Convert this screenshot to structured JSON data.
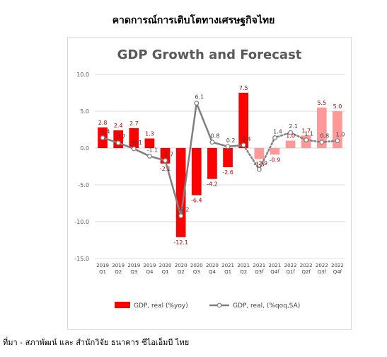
{
  "page_title": "คาดการณ์การเติบโตทางเศรษฐกิจไทย",
  "source": "ที่มา - สภาพัฒน์ และ สำนักวิจัย ธนาคาร ซีไอเอ็มบี ไทย",
  "colors": {
    "actual_bar": "#ff0000",
    "forecast_bar": "#ff9999",
    "line": "#7f7f7f",
    "grid": "#d9d9d9",
    "title": "#595959",
    "yoy_label": "#c00000",
    "qoq_label": "#404040"
  },
  "chart_data": {
    "type": "bar",
    "title": "GDP Growth and Forecast",
    "categories": [
      [
        "2019",
        "Q1"
      ],
      [
        "2019",
        "Q2"
      ],
      [
        "2019",
        "Q3"
      ],
      [
        "2019",
        "Q4"
      ],
      [
        "2020",
        "Q1"
      ],
      [
        "2020",
        "Q2"
      ],
      [
        "2020",
        "Q3"
      ],
      [
        "2020",
        "Q4"
      ],
      [
        "2021",
        "Q1"
      ],
      [
        "2021",
        "Q2"
      ],
      [
        "2021",
        "Q3f"
      ],
      [
        "2021",
        "Q4f"
      ],
      [
        "2022",
        "Q1f"
      ],
      [
        "2022",
        "Q2f"
      ],
      [
        "2022",
        "Q3f"
      ],
      [
        "2022",
        "Q4f"
      ]
    ],
    "forecast_from_index": 10,
    "ylim": [
      -15,
      10
    ],
    "yticks": [
      "10.0",
      "5.0",
      "0.0",
      "-5.0",
      "-10.0",
      "-15.0"
    ],
    "ytick_values": [
      10,
      5,
      0,
      -5,
      -10,
      -15
    ],
    "grid": true,
    "legend_position": "bottom",
    "series": [
      {
        "name": "GDP, real (%yoy)",
        "kind": "bar",
        "values": [
          2.8,
          2.4,
          2.7,
          1.3,
          -2.1,
          -12.1,
          -6.4,
          -4.2,
          -2.6,
          7.5,
          -1.5,
          -0.9,
          1.0,
          1.7,
          5.5,
          5.0
        ],
        "labels": [
          "2.8",
          "2.4",
          "2.7",
          "1.3",
          "-2.1",
          "-12.1",
          "-6.4",
          "-4.2",
          "-2.6",
          "7.5",
          "-1.5",
          "-0.9",
          "1.0",
          "1.7",
          "5.5",
          "5.0"
        ]
      },
      {
        "name": "GDP, real, (%qoq,SA)",
        "kind": "line",
        "values": [
          1.4,
          0.7,
          -0.1,
          -1.1,
          -1.7,
          -9.2,
          6.1,
          0.8,
          0.2,
          0.4,
          -2.9,
          1.4,
          2.1,
          1.1,
          0.8,
          1.0
        ],
        "labels": [
          "1.4",
          "0.7",
          "-0.1",
          "-1.1",
          "-1.7",
          "-9.2",
          "6.1",
          "0.8",
          "0.2",
          "0.4",
          "-2.9",
          "1.4",
          "2.1",
          "1.1",
          "0.8",
          "1.0"
        ]
      }
    ]
  }
}
